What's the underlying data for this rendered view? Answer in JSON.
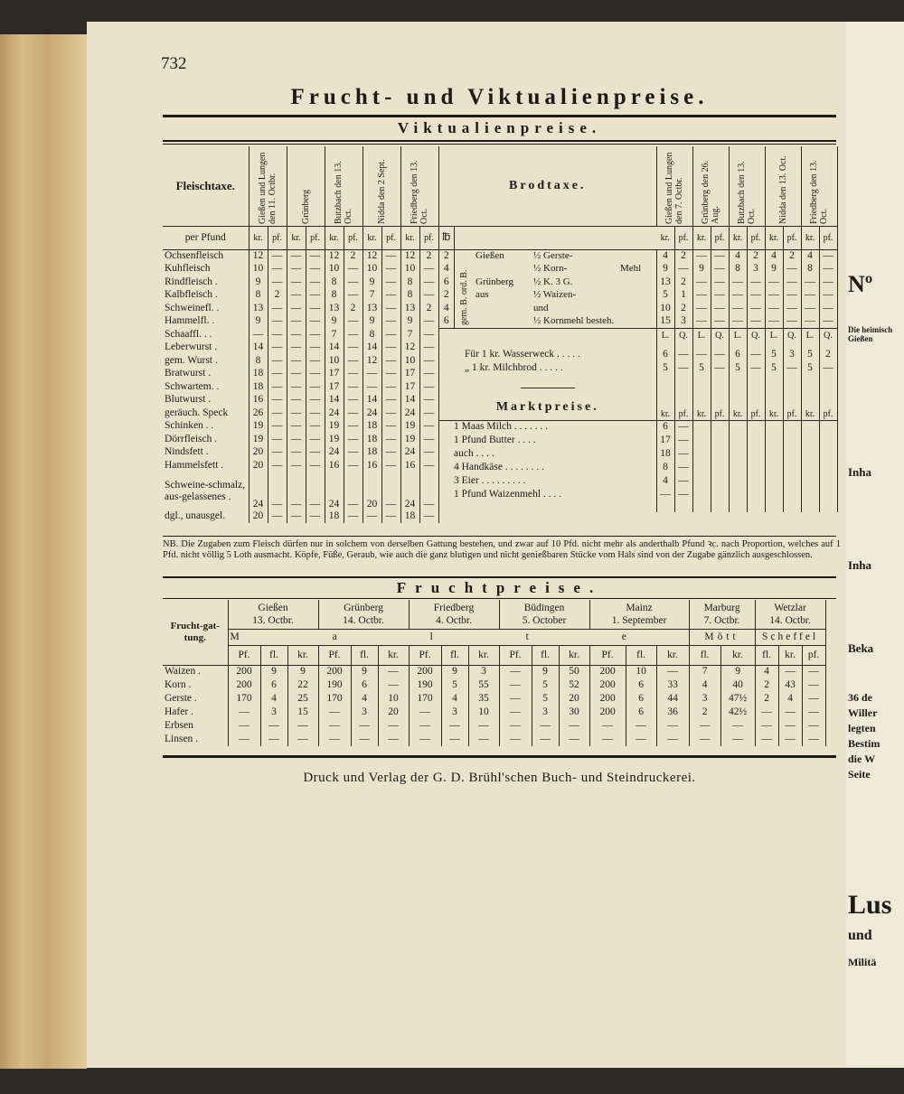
{
  "page_number": "732",
  "title": "Frucht- und Viktualienpreise.",
  "subtitle": "Viktualienpreise.",
  "fleischtaxe": {
    "title": "Fleischtaxe.",
    "unit_label": "per Pfund",
    "units": [
      "kr.",
      "pf."
    ],
    "cities": [
      "Gießen und Lungen den 11. Octbr.",
      "Grünberg",
      "Butzbach den 13. Oct.",
      "Nidda den 2 Sept.",
      "Friedberg den 13. Oct."
    ],
    "rows": [
      {
        "label": "Ochsenfleisch",
        "values": [
          "12",
          "—",
          "—",
          "—",
          "12",
          "2",
          "12",
          "—",
          "12",
          "2"
        ]
      },
      {
        "label": "Kuhfleisch",
        "values": [
          "10",
          "—",
          "—",
          "—",
          "10",
          "—",
          "10",
          "—",
          "10",
          "—"
        ]
      },
      {
        "label": "Rindfleisch .",
        "values": [
          "9",
          "—",
          "—",
          "—",
          "8",
          "—",
          "9",
          "—",
          "8",
          "—"
        ]
      },
      {
        "label": "Kalbfleisch .",
        "values": [
          "8",
          "2",
          "—",
          "—",
          "8",
          "—",
          "7",
          "—",
          "8",
          "—"
        ]
      },
      {
        "label": "Schweinefl. .",
        "values": [
          "13",
          "—",
          "—",
          "—",
          "13",
          "2",
          "13",
          "—",
          "13",
          "2"
        ]
      },
      {
        "label": "Hammelfl. .",
        "values": [
          "9",
          "—",
          "—",
          "—",
          "9",
          "—",
          "9",
          "—",
          "9",
          "—"
        ]
      },
      {
        "label": "Schaaffl. . .",
        "values": [
          "—",
          "—",
          "—",
          "—",
          "7",
          "—",
          "8",
          "—",
          "7",
          "—"
        ]
      },
      {
        "label": "Leberwurst .",
        "values": [
          "14",
          "—",
          "—",
          "—",
          "14",
          "—",
          "14",
          "—",
          "12",
          "—"
        ]
      },
      {
        "label": "gem. Wurst .",
        "values": [
          "8",
          "—",
          "—",
          "—",
          "10",
          "—",
          "12",
          "—",
          "10",
          "—"
        ]
      },
      {
        "label": "Bratwurst .",
        "values": [
          "18",
          "—",
          "—",
          "—",
          "17",
          "—",
          "—",
          "—",
          "17",
          "—"
        ]
      },
      {
        "label": "Schwartem. .",
        "values": [
          "18",
          "—",
          "—",
          "—",
          "17",
          "—",
          "—",
          "—",
          "17",
          "—"
        ]
      },
      {
        "label": "Blutwurst .",
        "values": [
          "16",
          "—",
          "—",
          "—",
          "14",
          "—",
          "14",
          "—",
          "14",
          "—"
        ]
      },
      {
        "label": "geräuch. Speck",
        "values": [
          "26",
          "—",
          "—",
          "—",
          "24",
          "—",
          "24",
          "—",
          "24",
          "—"
        ]
      },
      {
        "label": "Schinken . .",
        "values": [
          "19",
          "—",
          "—",
          "—",
          "19",
          "—",
          "18",
          "—",
          "19",
          "—"
        ]
      },
      {
        "label": "Dörrfleisch .",
        "values": [
          "19",
          "—",
          "—",
          "—",
          "19",
          "—",
          "18",
          "—",
          "19",
          "—"
        ]
      },
      {
        "label": "Nindsfett .",
        "values": [
          "20",
          "—",
          "—",
          "—",
          "24",
          "—",
          "18",
          "—",
          "24",
          "—"
        ]
      },
      {
        "label": "Hammelsfett .",
        "values": [
          "20",
          "—",
          "—",
          "—",
          "16",
          "—",
          "16",
          "—",
          "16",
          "—"
        ]
      },
      {
        "label": "Schweine-schmalz, aus-gelassenes .",
        "values": [
          "24",
          "—",
          "—",
          "—",
          "24",
          "—",
          "20",
          "—",
          "24",
          "—"
        ]
      },
      {
        "label": "dgl., unausgel.",
        "values": [
          "20",
          "—",
          "—",
          "—",
          "18",
          "—",
          "—",
          "—",
          "18",
          "—"
        ]
      }
    ]
  },
  "brodtaxe": {
    "title": "Brodtaxe.",
    "weight_unit": "℔",
    "kind_label": "gem. B. ord. B.",
    "units": [
      "kr.",
      "pf."
    ],
    "cities": [
      "Gießen und Lungen den 7. Octbr.",
      "Grünberg den 26. Aug.",
      "Butzbach den 13. Oct.",
      "Nidda den 13. Oct.",
      "Friedberg den 13. Oct."
    ],
    "rows": [
      {
        "weight": "2",
        "place": "Gießen",
        "grain": "½ Gerste-",
        "values": [
          "4",
          "2",
          "—",
          "—",
          "4",
          "2",
          "4",
          "2",
          "4",
          "—"
        ]
      },
      {
        "weight": "4",
        "grain": "½ Korn-",
        "tail": "Mehl",
        "values": [
          "9",
          "—",
          "9",
          "—",
          "8",
          "3",
          "9",
          "—",
          "8",
          "—"
        ]
      },
      {
        "weight": "6",
        "place": "Grünberg",
        "grain": "½ K. 3 G.",
        "values": [
          "13",
          "2",
          "—",
          "—",
          "—",
          "—",
          "—",
          "—",
          "—",
          "—"
        ]
      },
      {
        "weight": "2",
        "place": "aus",
        "grain": "½ Waizen-",
        "values": [
          "5",
          "1",
          "—",
          "—",
          "—",
          "—",
          "—",
          "—",
          "—",
          "—"
        ]
      },
      {
        "weight": "4",
        "grain": "und",
        "values": [
          "10",
          "2",
          "—",
          "—",
          "—",
          "—",
          "—",
          "—",
          "—",
          "—"
        ]
      },
      {
        "weight": "6",
        "grain": "½ Kornmehl besteh.",
        "values": [
          "15",
          "3",
          "—",
          "—",
          "—",
          "—",
          "—",
          "—",
          "—",
          "—"
        ]
      }
    ],
    "weight_units": [
      "L.",
      "Q."
    ],
    "small_breads": [
      {
        "label": "Für 1 kr. Wasserweck . . . . .",
        "values": [
          "6",
          "—",
          "—",
          "—",
          "6",
          "—",
          "5",
          "3",
          "5",
          "2"
        ]
      },
      {
        "label": "„ 1 kr. Milchbrod . . . . .",
        "values": [
          "5",
          "—",
          "5",
          "—",
          "5",
          "—",
          "5",
          "—",
          "5",
          "—"
        ]
      }
    ]
  },
  "marktpreise": {
    "title": "Marktpreise.",
    "units": [
      "kr.",
      "pf."
    ],
    "rows": [
      {
        "label": "1 Maas Milch . . . . . . .",
        "values": [
          "6",
          "—"
        ]
      },
      {
        "label": "1 Pfund Butter . . . .",
        "values": [
          "17",
          "—"
        ]
      },
      {
        "label": "auch . . . .",
        "values": [
          "18",
          "—"
        ]
      },
      {
        "label": "4 Handkäse . . . . . . . .",
        "values": [
          "8",
          "—"
        ]
      },
      {
        "label": "3 Eier . . . . . . . . .",
        "values": [
          "4",
          "—"
        ]
      },
      {
        "label": "1 Pfund Waizenmehl . . . .",
        "values": [
          "—",
          "—"
        ]
      }
    ]
  },
  "note": "NB. Die Zugaben zum Fleisch dürfen nur in solchem von derselben Gattung bestehen, und zwar auf 10 Pfd. nicht mehr als anderthalb Pfund ꝛc. nach Proportion, welches auf 1 Pfd. nicht völlig 5 Loth ausmacht. Köpfe, Füße, Geraub, wie auch die ganz blutigen und nicht genießbaren Stücke vom Hals sind von der Zugabe gänzlich ausgeschlossen.",
  "fruchtpreise": {
    "title": "Fruchtpreise.",
    "label_header": "Frucht-gat-tung.",
    "measures": [
      "M a l t e r.",
      "Mött",
      "Scheffel"
    ],
    "cities": [
      {
        "name": "Gießen",
        "date": "13. Octbr.",
        "units": [
          "Pf.",
          "fl.",
          "kr."
        ]
      },
      {
        "name": "Grünberg",
        "date": "14. Octbr.",
        "units": [
          "Pf.",
          "fl.",
          "kr."
        ]
      },
      {
        "name": "Friedberg",
        "date": "4. Octbr.",
        "units": [
          "Pf.",
          "fl.",
          "kr."
        ]
      },
      {
        "name": "Büdingen",
        "date": "5. October",
        "units": [
          "Pf.",
          "fl.",
          "kr."
        ]
      },
      {
        "name": "Mainz",
        "date": "1. September",
        "units": [
          "Pf.",
          "fl.",
          "kr."
        ]
      },
      {
        "name": "Marburg",
        "date": "7. Octbr.",
        "units": [
          "fl.",
          "kr."
        ]
      },
      {
        "name": "Wetzlar",
        "date": "14. Octbr.",
        "units": [
          "fl.",
          "kr.",
          "pf."
        ]
      }
    ],
    "rows": [
      {
        "label": "Waizen .",
        "values": [
          "200",
          "9",
          "9",
          "200",
          "9",
          "—",
          "200",
          "9",
          "3",
          "—",
          "9",
          "50",
          "200",
          "10",
          "—",
          "7",
          "9",
          "4",
          "—",
          "—"
        ]
      },
      {
        "label": "Korn .",
        "values": [
          "200",
          "6",
          "22",
          "190",
          "6",
          "—",
          "190",
          "5",
          "55",
          "—",
          "5",
          "52",
          "200",
          "6",
          "33",
          "4",
          "40",
          "2",
          "43",
          "—"
        ]
      },
      {
        "label": "Gerste .",
        "values": [
          "170",
          "4",
          "25",
          "170",
          "4",
          "10",
          "170",
          "4",
          "35",
          "—",
          "5",
          "20",
          "200",
          "6",
          "44",
          "3",
          "47½",
          "2",
          "4",
          "—"
        ]
      },
      {
        "label": "Hafer .",
        "values": [
          "—",
          "3",
          "15",
          "—",
          "3",
          "20",
          "—",
          "3",
          "10",
          "—",
          "3",
          "30",
          "200",
          "6",
          "36",
          "2",
          "42½",
          "—",
          "—",
          "—"
        ]
      },
      {
        "label": "Erbsen",
        "values": [
          "—",
          "—",
          "—",
          "—",
          "—",
          "—",
          "—",
          "—",
          "—",
          "—",
          "—",
          "—",
          "—",
          "—",
          "—",
          "—",
          "—",
          "—",
          "—",
          "—"
        ]
      },
      {
        "label": "Linsen .",
        "values": [
          "—",
          "—",
          "—",
          "—",
          "—",
          "—",
          "—",
          "—",
          "—",
          "—",
          "—",
          "—",
          "—",
          "—",
          "—",
          "—",
          "—",
          "—",
          "—",
          "—"
        ]
      }
    ]
  },
  "footer": "Druck und Verlag der G. D. Brühl'schen Buch- und Steindruckerei.",
  "next_page": {
    "fragments": [
      "Nº",
      "Die heimisch Gießen",
      "Inha",
      "Inha",
      "Beka",
      "36 de",
      "Willer",
      "legten",
      "Bestim",
      "die W",
      "Seite",
      "Lus",
      "und",
      "Militä"
    ]
  }
}
